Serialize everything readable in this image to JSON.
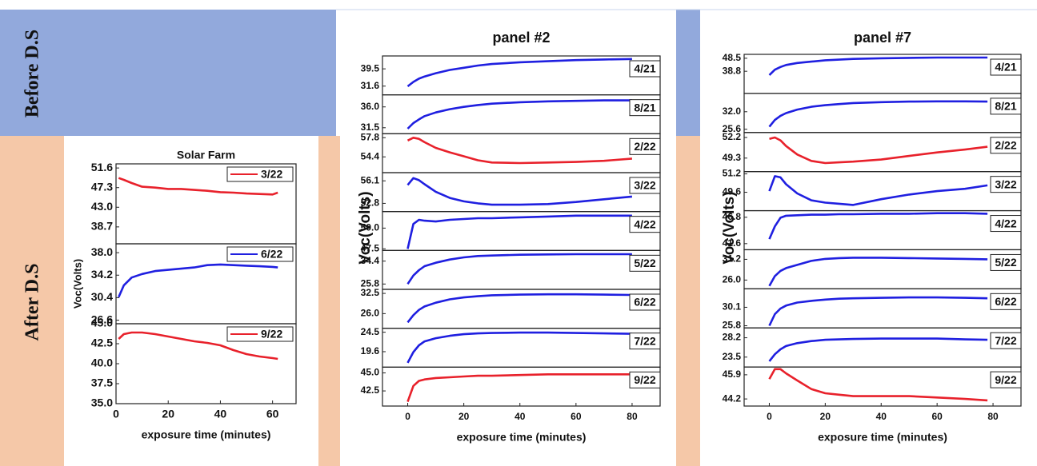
{
  "labels": {
    "before": "Before D.S",
    "after": "After D.S"
  },
  "chart_data": [
    {
      "type": "stacked-line",
      "title": "Solar Farm",
      "x_label": "exposure time (minutes)",
      "y_label": "Voc(Volts)",
      "x": [
        1,
        3,
        6,
        10,
        15,
        20,
        25,
        30,
        35,
        40,
        45,
        50,
        55,
        60,
        62
      ],
      "xlim": [
        0,
        69
      ],
      "xticks": [
        0,
        20,
        40,
        60
      ],
      "series": [
        {
          "name": "3/22",
          "color": "#e8212b",
          "ylim": [
            35.0,
            52.5
          ],
          "yticks": [
            51.6,
            47.3,
            {
              "value": 43.0,
              "label": "43.0"
            },
            38.7
          ],
          "values": [
            49.4,
            49.0,
            48.3,
            47.5,
            47.3,
            47.0,
            47.0,
            46.8,
            46.6,
            46.3,
            46.2,
            46.0,
            45.9,
            45.8,
            46.2
          ]
        },
        {
          "name": "6/22",
          "color": "#1f1fe0",
          "ylim": [
            26.0,
            39.5
          ],
          "yticks": [
            {
              "value": 38.0,
              "label": "38.0"
            },
            34.2,
            30.4,
            26.6
          ],
          "values": [
            30.5,
            32.5,
            33.8,
            34.4,
            34.9,
            35.1,
            35.3,
            35.5,
            35.9,
            36.0,
            35.9,
            35.8,
            35.7,
            35.6,
            35.5
          ]
        },
        {
          "name": "9/22",
          "color": "#e8212b",
          "ylim": [
            35.0,
            45.0
          ],
          "yticks": [
            {
              "value": 45.0,
              "label": "45.0"
            },
            42.5,
            {
              "value": 40.0,
              "label": "40.0"
            },
            37.5,
            {
              "value": 35.0,
              "label": "35.0"
            }
          ],
          "values": [
            43.1,
            43.7,
            43.9,
            43.9,
            43.7,
            43.4,
            43.1,
            42.8,
            42.6,
            42.3,
            41.7,
            41.2,
            40.9,
            40.7,
            40.6
          ]
        }
      ]
    },
    {
      "type": "stacked-line",
      "title": "panel #2",
      "x_label": "exposure time (minutes)",
      "y_label": "Voc(Volts)",
      "x": [
        0,
        2,
        4,
        6,
        10,
        15,
        20,
        25,
        30,
        40,
        50,
        60,
        70,
        80
      ],
      "xlim": [
        -9,
        90
      ],
      "xticks": [
        0,
        20,
        40,
        60,
        80
      ],
      "series": [
        {
          "name": "4/21",
          "color": "#1f1fe0",
          "ylim": [
            27.6,
            45.4
          ],
          "yticks": [
            39.5,
            31.6
          ],
          "values": [
            31.5,
            33.5,
            35,
            36,
            37.5,
            39,
            40,
            41,
            41.7,
            42.5,
            43,
            43.5,
            43.8,
            44
          ]
        },
        {
          "name": "8/21",
          "color": "#1f1fe0",
          "ylim": [
            30.2,
            38.6
          ],
          "yticks": [
            {
              "value": 36.0,
              "label": "36.0"
            },
            31.5
          ],
          "values": [
            31.3,
            32.5,
            33.3,
            34,
            34.8,
            35.5,
            36,
            36.4,
            36.7,
            37,
            37.2,
            37.3,
            37.4,
            37.4
          ]
        },
        {
          "name": "2/22",
          "color": "#e8212b",
          "ylim": [
            51.6,
            58.5
          ],
          "yticks": [
            57.8,
            54.4
          ],
          "values": [
            57.3,
            57.8,
            57.6,
            57.0,
            56,
            55.2,
            54.5,
            53.8,
            53.4,
            53.3,
            53.4,
            53.5,
            53.7,
            54.1
          ]
        },
        {
          "name": "3/22",
          "color": "#1f1fe0",
          "ylim": [
            51.6,
            57.3
          ],
          "yticks": [
            56.1,
            52.8
          ],
          "values": [
            55.5,
            56.5,
            56.2,
            55.6,
            54.5,
            53.6,
            53.1,
            52.8,
            52.6,
            52.6,
            52.7,
            53.0,
            53.4,
            53.8
          ]
        },
        {
          "name": "4/22",
          "color": "#1f1fe0",
          "ylim": [
            47.3,
            52.0
          ],
          "yticks": [
            {
              "value": 50.0,
              "label": "50.0"
            },
            47.5
          ],
          "values": [
            47.5,
            50.5,
            51.0,
            50.9,
            50.8,
            51.0,
            51.1,
            51.2,
            51.2,
            51.3,
            51.4,
            51.5,
            51.5,
            51.5
          ]
        },
        {
          "name": "5/22",
          "color": "#1f1fe0",
          "ylim": [
            23.8,
            38.4
          ],
          "yticks": [
            34.4,
            25.8
          ],
          "values": [
            25.8,
            29,
            31,
            32.5,
            33.8,
            35,
            35.8,
            36.3,
            36.5,
            36.8,
            36.9,
            37,
            37,
            37
          ]
        },
        {
          "name": "6/22",
          "color": "#1f1fe0",
          "ylim": [
            21.3,
            33.8
          ],
          "yticks": [
            32.5,
            {
              "value": 26.0,
              "label": "26.0"
            }
          ],
          "values": [
            23.2,
            25.5,
            27.2,
            28.3,
            29.5,
            30.6,
            31.2,
            31.6,
            31.9,
            32.1,
            32.2,
            32.2,
            32.1,
            32.0
          ]
        },
        {
          "name": "7/22",
          "color": "#1f1fe0",
          "ylim": [
            15.7,
            25.5
          ],
          "yticks": [
            24.5,
            19.6
          ],
          "values": [
            16.8,
            19.5,
            21.2,
            22.2,
            23.0,
            23.6,
            24.0,
            24.2,
            24.3,
            24.4,
            24.4,
            24.3,
            24.2,
            24.1
          ]
        },
        {
          "name": "9/22",
          "color": "#e8212b",
          "ylim": [
            40.4,
            45.8
          ],
          "yticks": [
            {
              "value": 45.0,
              "label": "45.0"
            },
            42.5
          ],
          "values": [
            41.0,
            43.2,
            43.9,
            44.1,
            44.3,
            44.4,
            44.5,
            44.6,
            44.6,
            44.7,
            44.8,
            44.8,
            44.8,
            44.8
          ]
        }
      ]
    },
    {
      "type": "stacked-line",
      "title": "panel #7",
      "x_label": "exposure time (minutes)",
      "y_label": "Voc(Volts)",
      "x": [
        0,
        2,
        4,
        6,
        10,
        15,
        20,
        25,
        30,
        40,
        50,
        60,
        70,
        78
      ],
      "xlim": [
        -9,
        90
      ],
      "xticks": [
        0,
        20,
        40,
        60,
        80
      ],
      "series": [
        {
          "name": "4/21",
          "color": "#1f1fe0",
          "ylim": [
            22.3,
            51.4
          ],
          "yticks": [
            48.5,
            38.8
          ],
          "values": [
            36,
            40,
            42,
            43.5,
            45,
            46,
            47,
            47.5,
            48,
            48.5,
            48.8,
            49,
            49,
            49
          ]
        },
        {
          "name": "8/21",
          "color": "#1f1fe0",
          "ylim": [
            24.4,
            38.7
          ],
          "yticks": [
            {
              "value": 32.0,
              "label": "32.0"
            },
            25.6
          ],
          "values": [
            26.5,
            29,
            30.5,
            31.5,
            32.8,
            33.8,
            34.4,
            34.8,
            35.2,
            35.5,
            35.7,
            35.8,
            35.8,
            35.7
          ]
        },
        {
          "name": "2/22",
          "color": "#e8212b",
          "ylim": [
            47.4,
            52.9
          ],
          "yticks": [
            52.2,
            49.3
          ],
          "values": [
            52.0,
            52.2,
            51.8,
            51.0,
            49.8,
            48.9,
            48.6,
            48.7,
            48.8,
            49.1,
            49.6,
            50.1,
            50.5,
            50.9
          ]
        },
        {
          "name": "3/22",
          "color": "#1f1fe0",
          "ylim": [
            48.0,
            51.4
          ],
          "yticks": [
            51.2,
            49.6
          ],
          "values": [
            49.7,
            51.0,
            50.9,
            50.3,
            49.5,
            48.9,
            48.7,
            48.6,
            48.5,
            49.0,
            49.4,
            49.7,
            49.9,
            50.2
          ]
        },
        {
          "name": "4/22",
          "color": "#1f1fe0",
          "ylim": [
            40.4,
            48.1
          ],
          "yticks": [
            46.8,
            41.6
          ],
          "values": [
            42.5,
            45,
            46.7,
            47.1,
            47.2,
            47.3,
            47.3,
            47.4,
            47.4,
            47.5,
            47.5,
            47.6,
            47.6,
            47.5
          ]
        },
        {
          "name": "5/22",
          "color": "#1f1fe0",
          "ylim": [
            23.8,
            33.6
          ],
          "yticks": [
            31.2,
            {
              "value": 26.0,
              "label": "26.0"
            }
          ],
          "values": [
            24.5,
            27,
            28.3,
            29,
            29.8,
            30.8,
            31.3,
            31.5,
            31.6,
            31.6,
            31.5,
            31.4,
            31.3,
            31.2
          ]
        },
        {
          "name": "6/22",
          "color": "#1f1fe0",
          "ylim": [
            25.3,
            34.4
          ],
          "yticks": [
            30.1,
            25.8
          ],
          "values": [
            25.8,
            28.5,
            29.8,
            30.5,
            31.2,
            31.6,
            31.9,
            32.1,
            32.2,
            32.3,
            32.4,
            32.4,
            32.3,
            32.2
          ]
        },
        {
          "name": "7/22",
          "color": "#1f1fe0",
          "ylim": [
            21.1,
            30.6
          ],
          "yticks": [
            28.2,
            23.5
          ],
          "values": [
            22.5,
            24.2,
            25.4,
            26.2,
            26.9,
            27.4,
            27.7,
            27.8,
            27.9,
            28.0,
            28.0,
            28.0,
            27.8,
            27.7
          ]
        },
        {
          "name": "9/22",
          "color": "#e8212b",
          "ylim": [
            43.7,
            46.45
          ],
          "yticks": [
            45.9,
            44.2
          ],
          "values": [
            45.6,
            46.3,
            46.3,
            46.0,
            45.5,
            44.9,
            44.6,
            44.5,
            44.4,
            44.4,
            44.4,
            44.3,
            44.2,
            44.1
          ]
        }
      ]
    }
  ]
}
